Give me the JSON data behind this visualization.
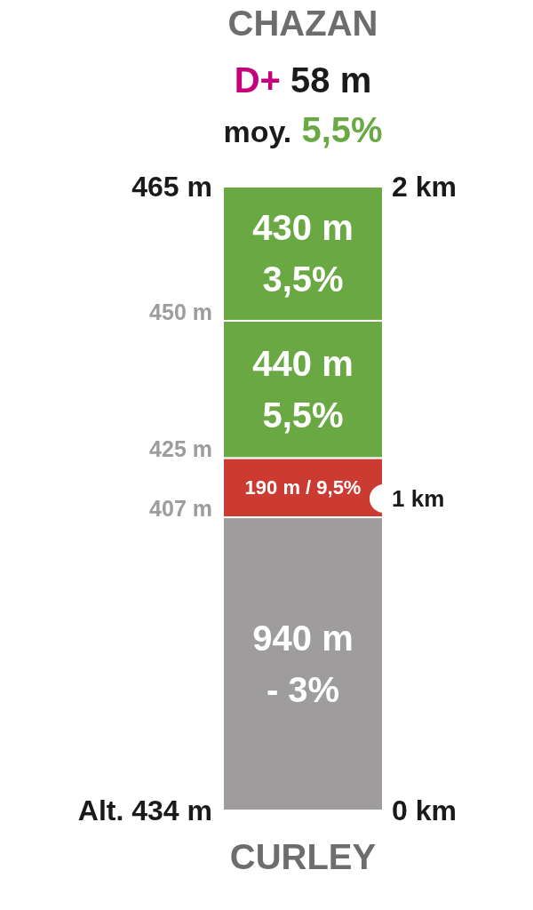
{
  "chart_data": {
    "type": "bar",
    "stacked": true,
    "title": "CHAZAN",
    "subtitle": "D+ 58 m\nmoy. 5,5%",
    "xlabel": "CURLEY",
    "categories": [
      null
    ],
    "series": [
      {
        "color": "#9e9c9c",
        "values": [
          0.94
        ]
      },
      {
        "color": "#cc3b32",
        "values": [
          0.19
        ]
      },
      {
        "color": "#6aa843",
        "values": [
          0.44
        ]
      },
      {
        "color": "#6aa843",
        "values": [
          0.43
        ]
      }
    ],
    "ylim": [
      0,
      2
    ],
    "yticks": [
      {
        "value": 0,
        "label": "0 km"
      },
      {
        "value": 1,
        "label": "1 km"
      },
      {
        "value": 2,
        "label": "2 km"
      }
    ],
    "annotations": [
      "Alt. 434 m",
      "407 m",
      "425 m",
      "450 m",
      "465 m",
      "940 m\n- 3%",
      "190 m / 9,5%",
      "440 m\n5,5%",
      "430 m\n3,5%"
    ]
  }
}
